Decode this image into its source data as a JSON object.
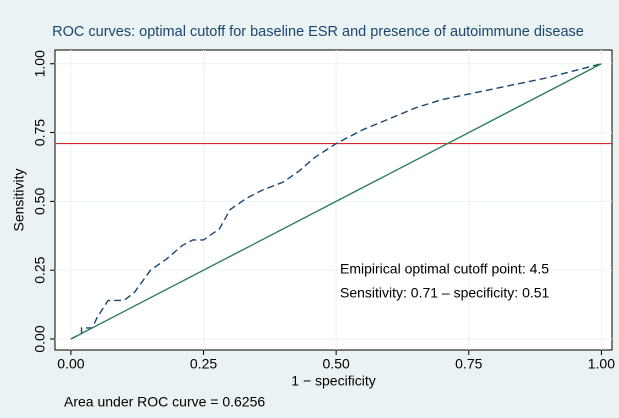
{
  "chart_data": {
    "type": "line",
    "title": "ROC curves: optimal cutoff for baseline ESR and presence of autoimmune disease",
    "xlabel": "1 − specificity",
    "ylabel": "Sensitivity",
    "series": [
      {
        "color": "#1a476f",
        "style": "dashed",
        "x": [
          0,
          0.02,
          0.02,
          0.04,
          0.05,
          0.07,
          0.1,
          0.12,
          0.15,
          0.18,
          0.21,
          0.23,
          0.25,
          0.28,
          0.3,
          0.33,
          0.36,
          0.4,
          0.43,
          0.46,
          0.5,
          0.55,
          0.6,
          0.65,
          0.7,
          0.8,
          0.9,
          1
        ],
        "values": [
          0,
          0.02,
          0.04,
          0.04,
          0.08,
          0.14,
          0.14,
          0.17,
          0.25,
          0.29,
          0.34,
          0.36,
          0.36,
          0.4,
          0.47,
          0.51,
          0.54,
          0.57,
          0.61,
          0.66,
          0.71,
          0.76,
          0.8,
          0.84,
          0.87,
          0.91,
          0.95,
          1
        ]
      },
      {
        "color": "#2e7d5b",
        "style": "solid",
        "x": [
          0,
          1
        ],
        "values": [
          0,
          1
        ]
      }
    ],
    "hline": {
      "value": 0.71,
      "color": "#d62728"
    },
    "annotations": [
      "Emipirical optimal cutoff point: 4.5",
      "Sensitivity: 0.71 – specificity: 0.51"
    ],
    "note": "Area under ROC curve = 0.6256",
    "xlim": [
      -0.03,
      1.02
    ],
    "ylim": [
      -0.04,
      1.05
    ],
    "xticks": [
      {
        "value": 0,
        "label": "0.00"
      },
      {
        "value": 0.25,
        "label": "0.25"
      },
      {
        "value": 0.5,
        "label": "0.50"
      },
      {
        "value": 0.75,
        "label": "0.75"
      },
      {
        "value": 1,
        "label": "1.00"
      }
    ],
    "yticks": [
      {
        "value": 0,
        "label": "0.00"
      },
      {
        "value": 0.25,
        "label": "0.25"
      },
      {
        "value": 0.5,
        "label": "0.50"
      },
      {
        "value": 0.75,
        "label": "0.75"
      },
      {
        "value": 1,
        "label": "1.00"
      }
    ],
    "grid": true
  }
}
